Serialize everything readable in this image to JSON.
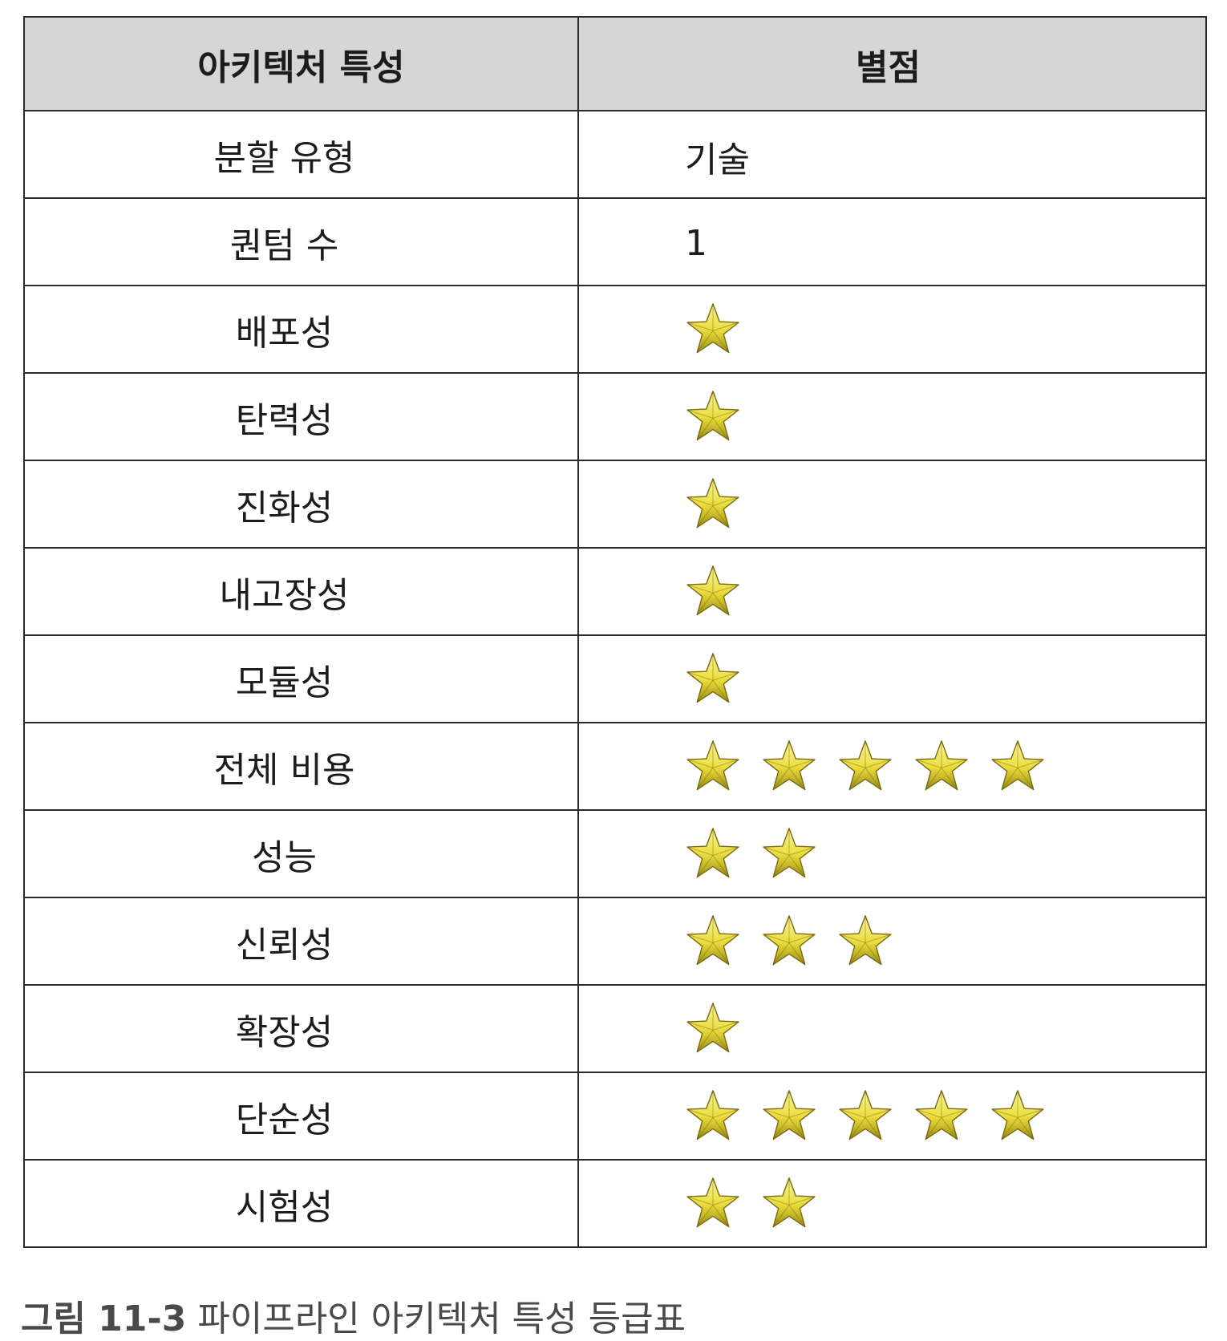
{
  "table": {
    "headers": [
      "아키텍처 특성",
      "별점"
    ],
    "rows": [
      {
        "label": "분할 유형",
        "value": "기술"
      },
      {
        "label": "퀀텀 수",
        "value": "1"
      },
      {
        "label": "배포성",
        "stars": 1
      },
      {
        "label": "탄력성",
        "stars": 1
      },
      {
        "label": "진화성",
        "stars": 1
      },
      {
        "label": "내고장성",
        "stars": 1
      },
      {
        "label": "모듈성",
        "stars": 1
      },
      {
        "label": "전체 비용",
        "stars": 5
      },
      {
        "label": "성능",
        "stars": 2
      },
      {
        "label": "신뢰성",
        "stars": 3
      },
      {
        "label": "확장성",
        "stars": 1
      },
      {
        "label": "단순성",
        "stars": 5
      },
      {
        "label": "시험성",
        "stars": 2
      }
    ]
  },
  "caption": {
    "figure_number": "그림 11-3",
    "text": "파이프라인 아키텍처 특성 등급표"
  },
  "colors": {
    "header_background": "#d6d6d6",
    "border": "#2b2b2b",
    "star_gold": "#e9dc3a",
    "star_dark": "#7a6a10",
    "caption_text": "#4a4a4a"
  },
  "icons": {
    "rating_star": "star-icon"
  }
}
